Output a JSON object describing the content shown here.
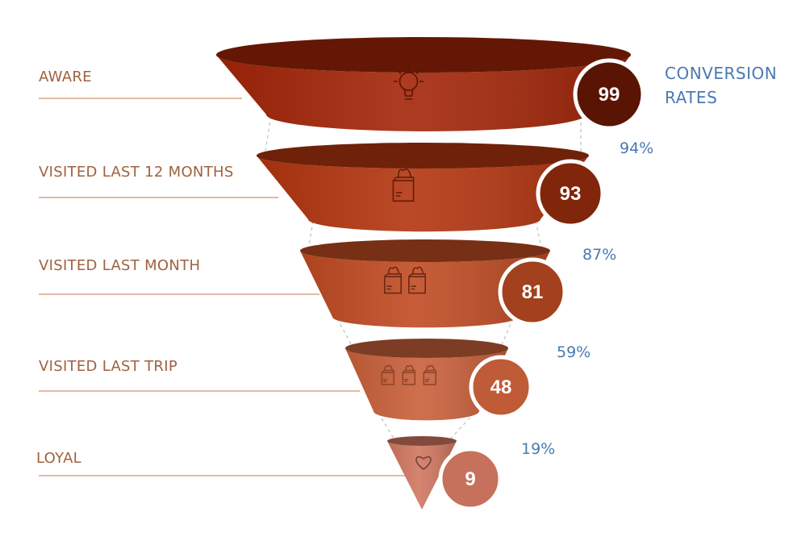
{
  "chart_data": {
    "type": "funnel",
    "title": "CONVERSION RATES",
    "title_lines": [
      "CONVERSION",
      "RATES"
    ],
    "stages": [
      {
        "label": "AWARE",
        "value": 99,
        "icon": "lightbulb-icon",
        "color": "#a32508"
      },
      {
        "label": "VISITED LAST 12 MONTHS",
        "value": 93,
        "icon": "grocery-bag-icon",
        "color": "#b3350f"
      },
      {
        "label": "VISITED LAST MONTH",
        "value": 81,
        "icon": "two-grocery-bags-icon",
        "color": "#c04b22"
      },
      {
        "label": "VISITED LAST TRIP",
        "value": 48,
        "icon": "three-grocery-bags-icon",
        "color": "#c9603a"
      },
      {
        "label": "LOYAL",
        "value": 9,
        "icon": "heart-icon",
        "color": "#d07760"
      }
    ],
    "conversion_rates": [
      "94%",
      "87%",
      "59%",
      "19%"
    ],
    "colors": {
      "label": "#a0613f",
      "conversion": "#4a79b3",
      "badge_top": "#5c1505",
      "badge_bottom": "#d07760"
    }
  }
}
